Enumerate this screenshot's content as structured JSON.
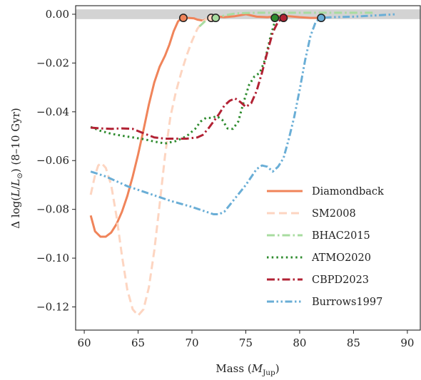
{
  "chart_data": {
    "type": "line",
    "title": "",
    "xlabel": "Mass (M_Jup)",
    "xlabel_main": "Mass (",
    "xlabel_symbol": "M",
    "xlabel_sub": "Jup",
    "xlabel_close": ")",
    "ylabel": "Δlog(L/L☉) (8–10 Gyr)",
    "ylabel_prefix": "Δ log(",
    "ylabel_L1": "L",
    "ylabel_slash": "/",
    "ylabel_L2": "L",
    "ylabel_sub": "⊙",
    "ylabel_suffix": ") (8–10 Gyr)",
    "xlim": [
      59.2,
      91.2
    ],
    "ylim": [
      -0.1295,
      0.0035
    ],
    "xticks": [
      60,
      65,
      70,
      75,
      80,
      85,
      90
    ],
    "xtick_labels": [
      "60",
      "65",
      "70",
      "75",
      "80",
      "85",
      "90"
    ],
    "yticks": [
      0.0,
      -0.02,
      -0.04,
      -0.06,
      -0.08,
      -0.1,
      -0.12
    ],
    "ytick_labels": [
      "0.00",
      "−0.02",
      "−0.04",
      "−0.06",
      "−0.08",
      "−0.10",
      "−0.12"
    ],
    "grid": false,
    "legend_position": "lower-right",
    "band": {
      "y0": -0.002,
      "y1": 0.002,
      "color": "#d3d3d3"
    },
    "series": [
      {
        "name": "Diamondback",
        "color": "#f0845a",
        "dash": "solid",
        "width": 3,
        "x": [
          60.6,
          61.0,
          61.5,
          62.0,
          62.5,
          63.0,
          63.5,
          64.0,
          64.5,
          65.0,
          65.5,
          66.0,
          66.5,
          67.0,
          67.5,
          67.9,
          68.3,
          68.7,
          69.0,
          69.3,
          69.7,
          70.2,
          70.5,
          71.0,
          71.5,
          72.0,
          73.0,
          74.0,
          75.0,
          76.0,
          77.0,
          78.0,
          79.0,
          80.0,
          81.0,
          82.0
        ],
        "y": [
          -0.0825,
          -0.089,
          -0.0912,
          -0.0912,
          -0.0895,
          -0.086,
          -0.081,
          -0.0745,
          -0.0665,
          -0.0575,
          -0.0475,
          -0.037,
          -0.028,
          -0.0215,
          -0.017,
          -0.0125,
          -0.007,
          -0.003,
          -0.0017,
          -0.0015,
          -0.0015,
          -0.0017,
          -0.0022,
          -0.0026,
          -0.0018,
          -0.0008,
          -0.0012,
          -0.0008,
          0.0,
          -0.001,
          -0.0012,
          -0.0008,
          -0.0008,
          -0.0012,
          -0.0015,
          -0.0015
        ],
        "marker": {
          "x": 69.2,
          "y": -0.0015
        }
      },
      {
        "name": "SM2008",
        "color": "#fdd5c1",
        "dash": "dashed",
        "width": 3,
        "x": [
          60.6,
          61.0,
          61.3,
          61.6,
          62.0,
          62.5,
          63.0,
          63.5,
          64.0,
          64.5,
          65.0,
          65.5,
          66.0,
          66.5,
          67.0,
          67.5,
          68.0,
          68.5,
          69.0,
          69.5,
          70.0,
          70.5,
          71.0,
          71.5,
          72.0
        ],
        "y": [
          -0.074,
          -0.066,
          -0.062,
          -0.061,
          -0.063,
          -0.07,
          -0.083,
          -0.099,
          -0.113,
          -0.121,
          -0.1235,
          -0.121,
          -0.112,
          -0.097,
          -0.078,
          -0.058,
          -0.042,
          -0.032,
          -0.024,
          -0.017,
          -0.011,
          -0.006,
          -0.003,
          -0.0016,
          -0.0015
        ],
        "marker": {
          "x": 71.8,
          "y": -0.0015
        }
      },
      {
        "name": "BHAC2015",
        "color": "#a8dca0",
        "dash": "dashdot",
        "width": 3,
        "x": [
          70.7,
          71.3,
          71.8,
          72.3,
          73.0,
          74.0,
          75.0,
          76.0,
          77.0,
          78.0,
          79.0,
          80.0,
          81.0,
          82.0,
          83.0,
          84.0,
          85.0,
          86.0,
          87.0
        ],
        "y": [
          -0.005,
          -0.0025,
          -0.0016,
          -0.0015,
          -0.0005,
          0.0003,
          0.0005,
          0.0006,
          0.0006,
          0.0006,
          0.0006,
          0.0006,
          0.0006,
          0.0006,
          0.0006,
          0.0006,
          0.0006,
          0.0006,
          0.0006
        ],
        "marker": {
          "x": 72.2,
          "y": -0.0015
        }
      },
      {
        "name": "ATMO2020",
        "color": "#2e8b2e",
        "dash": "dotted",
        "width": 3,
        "x": [
          60.6,
          61.5,
          62.5,
          63.5,
          64.5,
          65.5,
          66.5,
          67.5,
          68.5,
          69.5,
          70.3,
          70.8,
          71.3,
          71.8,
          72.3,
          72.8,
          73.3,
          73.8,
          74.3,
          74.8,
          75.3,
          75.8,
          76.3,
          76.8,
          77.3,
          77.8
        ],
        "y": [
          -0.0462,
          -0.0478,
          -0.049,
          -0.0498,
          -0.0505,
          -0.0512,
          -0.0522,
          -0.053,
          -0.052,
          -0.05,
          -0.047,
          -0.044,
          -0.0425,
          -0.0425,
          -0.0418,
          -0.0432,
          -0.0468,
          -0.047,
          -0.044,
          -0.036,
          -0.029,
          -0.0255,
          -0.024,
          -0.0185,
          -0.009,
          -0.0015
        ],
        "marker": {
          "x": 77.7,
          "y": -0.0015
        }
      },
      {
        "name": "CBPD2023",
        "color": "#b22234",
        "dash": "dashdot",
        "width": 3,
        "x": [
          60.6,
          61.5,
          62.5,
          63.5,
          64.5,
          65.5,
          66.5,
          67.5,
          68.5,
          69.5,
          70.5,
          71.0,
          71.5,
          72.0,
          72.5,
          73.0,
          73.5,
          74.0,
          74.5,
          75.0,
          75.5,
          76.0,
          76.5,
          77.0,
          77.5,
          78.0,
          78.5
        ],
        "y": [
          -0.0465,
          -0.0468,
          -0.047,
          -0.0468,
          -0.047,
          -0.0488,
          -0.0505,
          -0.051,
          -0.051,
          -0.051,
          -0.0505,
          -0.0495,
          -0.047,
          -0.044,
          -0.041,
          -0.0375,
          -0.0355,
          -0.0345,
          -0.036,
          -0.038,
          -0.0365,
          -0.0315,
          -0.024,
          -0.0155,
          -0.0075,
          -0.003,
          -0.0015
        ],
        "marker": {
          "x": 78.5,
          "y": -0.0015
        }
      },
      {
        "name": "Burrows1997",
        "color": "#6aaed6",
        "dash": "dashdotdot",
        "width": 3,
        "x": [
          60.6,
          62.0,
          64.0,
          66.0,
          68.0,
          70.0,
          71.0,
          72.0,
          72.5,
          73.0,
          74.0,
          75.0,
          76.0,
          76.5,
          77.0,
          77.5,
          78.0,
          78.5,
          79.0,
          79.5,
          80.0,
          80.5,
          81.0,
          81.5,
          82.0,
          83.0,
          85.0,
          87.0,
          89.0
        ],
        "y": [
          -0.0645,
          -0.0665,
          -0.0705,
          -0.0735,
          -0.0765,
          -0.079,
          -0.0805,
          -0.082,
          -0.082,
          -0.081,
          -0.0755,
          -0.07,
          -0.0635,
          -0.062,
          -0.0625,
          -0.0645,
          -0.0625,
          -0.059,
          -0.051,
          -0.042,
          -0.031,
          -0.019,
          -0.009,
          -0.003,
          -0.0015,
          -0.0012,
          -0.001,
          -0.0005,
          0.0
        ],
        "marker": {
          "x": 82.0,
          "y": -0.0015
        }
      }
    ]
  }
}
